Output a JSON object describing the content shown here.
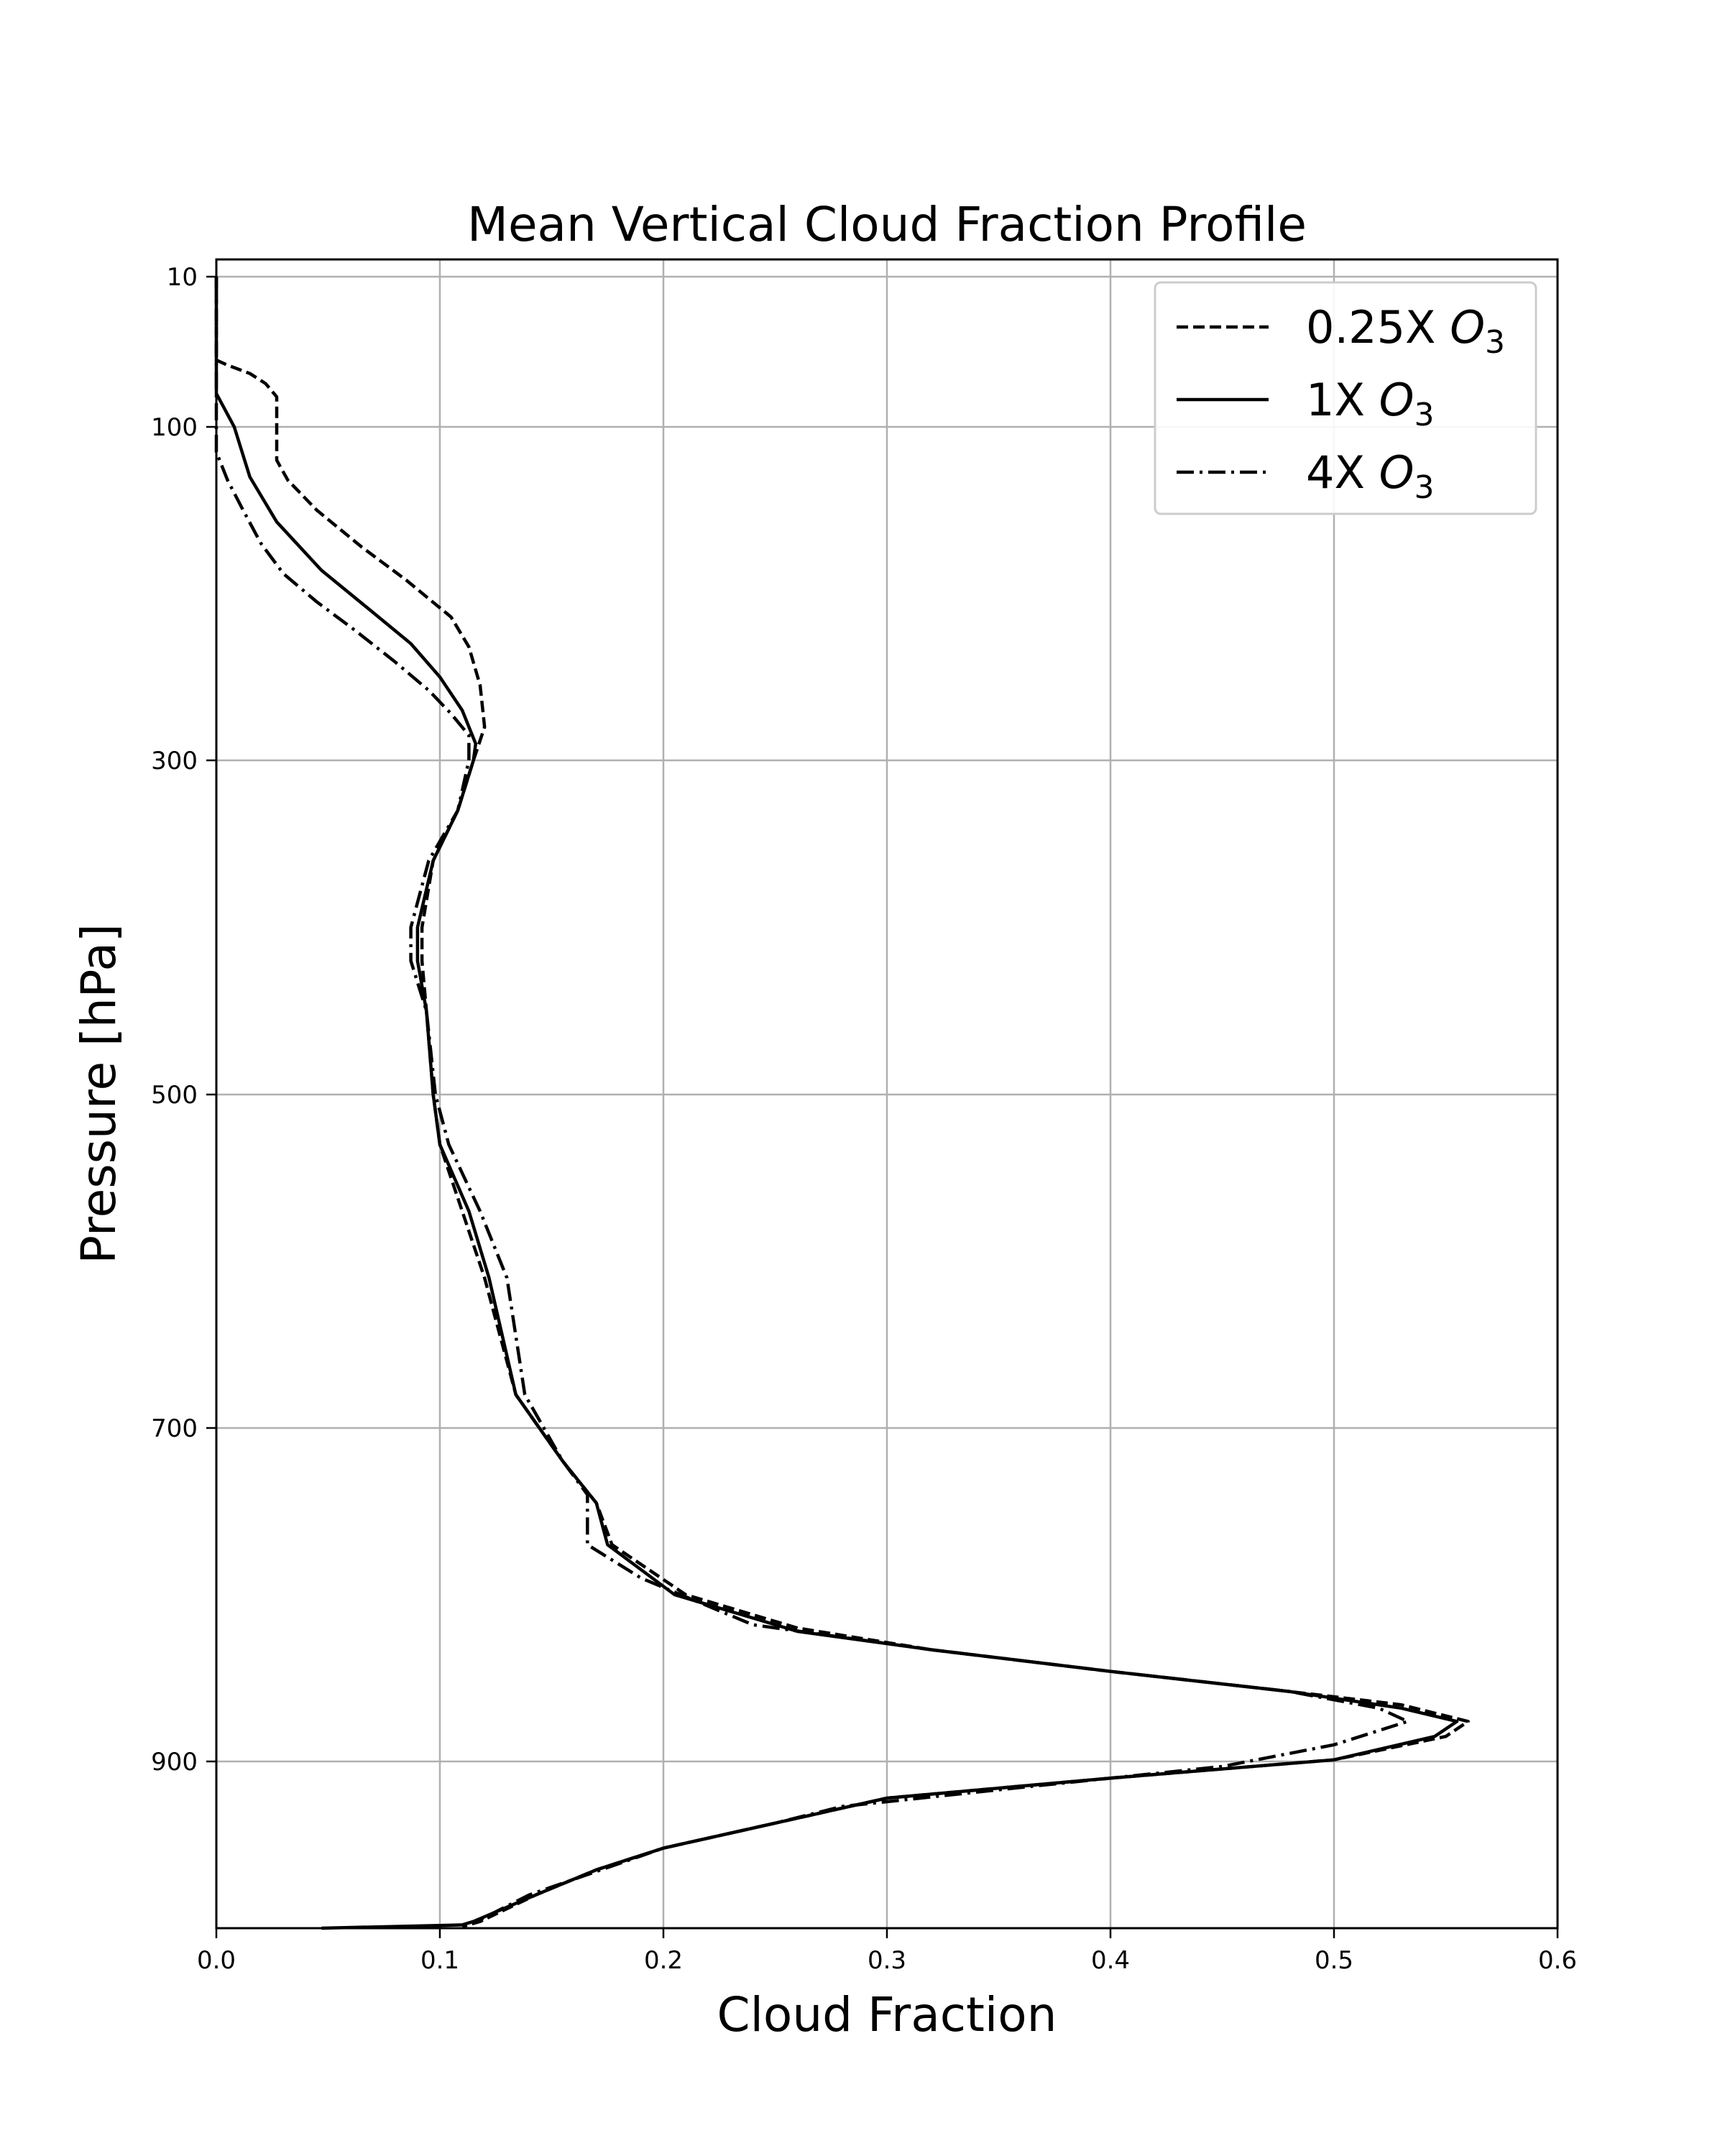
{
  "chart_data": {
    "type": "line",
    "title": "Mean Vertical Cloud Fraction Profile",
    "xlabel": "Cloud Fraction",
    "ylabel": "Pressure [hPa]",
    "xlim": [
      0.0,
      0.6
    ],
    "ylim": [
      1000,
      10
    ],
    "y_inverted": true,
    "grid": true,
    "legend_position": "top-right",
    "x_ticks": [
      "0.0",
      "0.1",
      "0.2",
      "0.3",
      "0.4",
      "0.5",
      "0.6"
    ],
    "y_ticks": [
      "10",
      "100",
      "300",
      "500",
      "700",
      "900"
    ],
    "series": [
      {
        "name": "0.25X O3",
        "label_main": "0.25X ",
        "label_var": "O",
        "label_sub": "3",
        "style": "dashed",
        "points": [
          [
            0.0,
            10
          ],
          [
            0.0,
            60
          ],
          [
            0.005,
            63
          ],
          [
            0.015,
            68
          ],
          [
            0.022,
            74
          ],
          [
            0.027,
            82
          ],
          [
            0.027,
            100
          ],
          [
            0.027,
            120
          ],
          [
            0.032,
            132
          ],
          [
            0.045,
            150
          ],
          [
            0.065,
            172
          ],
          [
            0.085,
            192
          ],
          [
            0.105,
            214
          ],
          [
            0.113,
            232
          ],
          [
            0.118,
            255
          ],
          [
            0.12,
            280
          ],
          [
            0.115,
            300
          ],
          [
            0.108,
            330
          ],
          [
            0.097,
            360
          ],
          [
            0.092,
            400
          ],
          [
            0.092,
            420
          ],
          [
            0.094,
            450
          ],
          [
            0.097,
            500
          ],
          [
            0.1,
            530
          ],
          [
            0.11,
            570
          ],
          [
            0.12,
            610
          ],
          [
            0.134,
            680
          ],
          [
            0.155,
            720
          ],
          [
            0.17,
            745
          ],
          [
            0.177,
            770
          ],
          [
            0.21,
            800
          ],
          [
            0.26,
            820
          ],
          [
            0.32,
            833
          ],
          [
            0.4,
            846
          ],
          [
            0.48,
            858
          ],
          [
            0.53,
            866
          ],
          [
            0.56,
            876
          ],
          [
            0.55,
            885
          ],
          [
            0.5,
            899
          ],
          [
            0.4,
            910
          ],
          [
            0.3,
            922
          ],
          [
            0.25,
            937
          ],
          [
            0.2,
            952
          ],
          [
            0.17,
            965
          ],
          [
            0.143,
            980
          ],
          [
            0.118,
            996
          ],
          [
            0.11,
            999
          ]
        ]
      },
      {
        "name": "1X O3",
        "label_main": "1X ",
        "label_var": "O",
        "label_sub": "3",
        "style": "solid",
        "points": [
          [
            0.0,
            10
          ],
          [
            0.0,
            80
          ],
          [
            0.008,
            100
          ],
          [
            0.015,
            130
          ],
          [
            0.027,
            157
          ],
          [
            0.047,
            186
          ],
          [
            0.068,
            209
          ],
          [
            0.087,
            230
          ],
          [
            0.1,
            250
          ],
          [
            0.11,
            270
          ],
          [
            0.116,
            290
          ],
          [
            0.115,
            300
          ],
          [
            0.108,
            330
          ],
          [
            0.097,
            360
          ],
          [
            0.09,
            400
          ],
          [
            0.09,
            420
          ],
          [
            0.094,
            450
          ],
          [
            0.097,
            500
          ],
          [
            0.1,
            530
          ],
          [
            0.113,
            570
          ],
          [
            0.122,
            610
          ],
          [
            0.134,
            680
          ],
          [
            0.155,
            720
          ],
          [
            0.17,
            745
          ],
          [
            0.175,
            770
          ],
          [
            0.205,
            800
          ],
          [
            0.26,
            822
          ],
          [
            0.32,
            833
          ],
          [
            0.4,
            846
          ],
          [
            0.48,
            858
          ],
          [
            0.53,
            868
          ],
          [
            0.555,
            876
          ],
          [
            0.545,
            885
          ],
          [
            0.5,
            899
          ],
          [
            0.4,
            910
          ],
          [
            0.3,
            922
          ],
          [
            0.25,
            937
          ],
          [
            0.2,
            952
          ],
          [
            0.17,
            965
          ],
          [
            0.143,
            980
          ],
          [
            0.115,
            996
          ],
          [
            0.11,
            998
          ],
          [
            0.047,
            1000
          ]
        ]
      },
      {
        "name": "4X O3",
        "label_main": "4X ",
        "label_var": "O",
        "label_sub": "3",
        "style": "dashdot",
        "points": [
          [
            0.0,
            10
          ],
          [
            0.0,
            115
          ],
          [
            0.005,
            132
          ],
          [
            0.012,
            150
          ],
          [
            0.02,
            170
          ],
          [
            0.03,
            188
          ],
          [
            0.045,
            205
          ],
          [
            0.062,
            222
          ],
          [
            0.08,
            241
          ],
          [
            0.095,
            258
          ],
          [
            0.105,
            272
          ],
          [
            0.113,
            285
          ],
          [
            0.113,
            300
          ],
          [
            0.108,
            330
          ],
          [
            0.095,
            360
          ],
          [
            0.087,
            400
          ],
          [
            0.087,
            420
          ],
          [
            0.094,
            450
          ],
          [
            0.098,
            500
          ],
          [
            0.104,
            530
          ],
          [
            0.118,
            570
          ],
          [
            0.13,
            610
          ],
          [
            0.138,
            680
          ],
          [
            0.155,
            720
          ],
          [
            0.166,
            740
          ],
          [
            0.166,
            770
          ],
          [
            0.19,
            790
          ],
          [
            0.24,
            818
          ],
          [
            0.32,
            833
          ],
          [
            0.4,
            846
          ],
          [
            0.48,
            858
          ],
          [
            0.52,
            868
          ],
          [
            0.533,
            876
          ],
          [
            0.5,
            890
          ],
          [
            0.45,
            903
          ],
          [
            0.35,
            917
          ],
          [
            0.28,
            927
          ],
          [
            0.25,
            937
          ],
          [
            0.2,
            952
          ],
          [
            0.17,
            966
          ],
          [
            0.14,
            980
          ],
          [
            0.115,
            997
          ]
        ]
      }
    ]
  }
}
